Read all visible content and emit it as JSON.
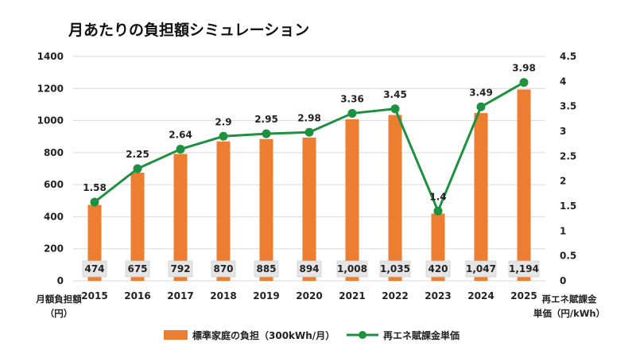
{
  "chart_data": {
    "type": "bar+line",
    "title": "月あたりの負担額シミュレーション",
    "categories": [
      "2015",
      "2016",
      "2017",
      "2018",
      "2019",
      "2020",
      "2021",
      "2022",
      "2023",
      "2024",
      "2025"
    ],
    "series": [
      {
        "name": "標準家庭の負担（300kWh/月）",
        "type": "bar",
        "axis": "left",
        "color": "#ED7D31",
        "values": [
          474,
          675,
          792,
          870,
          885,
          894,
          1008,
          1035,
          420,
          1047,
          1194
        ],
        "labels": [
          "474",
          "675",
          "792",
          "870",
          "885",
          "894",
          "1,008",
          "1,035",
          "420",
          "1,047",
          "1,194"
        ]
      },
      {
        "name": "再エネ賦課金単価",
        "type": "line",
        "axis": "right",
        "color": "#1E9140",
        "values": [
          1.58,
          2.25,
          2.64,
          2.9,
          2.95,
          2.98,
          3.36,
          3.45,
          1.4,
          3.49,
          3.98
        ],
        "labels": [
          "1.58",
          "2.25",
          "2.64",
          "2.9",
          "2.95",
          "2.98",
          "3.36",
          "3.45",
          "1.4",
          "3.49",
          "3.98"
        ]
      }
    ],
    "y_left": {
      "label_line1": "月額負担額",
      "label_line2": "（円）",
      "ylim": [
        0,
        1400
      ],
      "ticks": [
        "0",
        "200",
        "400",
        "600",
        "800",
        "1000",
        "1200",
        "1400"
      ]
    },
    "y_right": {
      "label_line1": "再エネ賦課金",
      "label_line2": "単価（円/kWh）",
      "ylim": [
        0,
        4.5
      ],
      "ticks": [
        "0",
        "0.5",
        "1",
        "1.5",
        "2",
        "2.5",
        "3",
        "3.5",
        "4",
        "4.5"
      ]
    },
    "grid": true,
    "legend_position": "bottom"
  }
}
